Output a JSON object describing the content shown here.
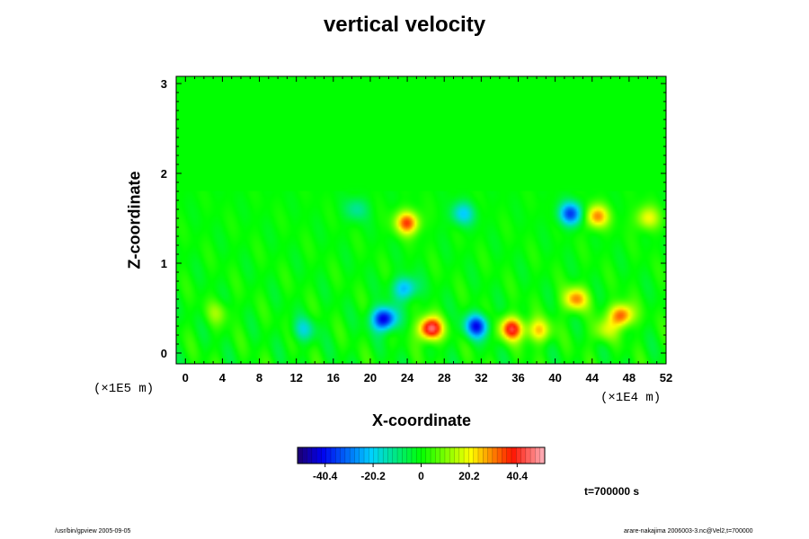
{
  "chart_data": {
    "type": "heatmap",
    "title": "vertical velocity",
    "xlabel": "X-coordinate",
    "ylabel": "Z-coordinate",
    "x_scale_label": "(×1E4 m)",
    "y_scale_label": "(×1E5 m)",
    "xlim": [
      -1,
      52
    ],
    "ylim": [
      -0.12,
      3.08
    ],
    "x_ticks": [
      0,
      4,
      8,
      12,
      16,
      20,
      24,
      28,
      32,
      36,
      40,
      44,
      48,
      52
    ],
    "y_ticks": [
      0,
      1,
      2,
      3
    ],
    "colorbar": {
      "range": [
        -52,
        52
      ],
      "tick_values": [
        -40.4,
        -20.2,
        0,
        20.2,
        40.4
      ],
      "tick_labels": [
        "-40.4",
        "-20.2",
        "0",
        "20.2",
        "40.4"
      ]
    },
    "features": [
      {
        "x": 21.5,
        "z": 0.38,
        "value": -46
      },
      {
        "x": 26.5,
        "z": 0.27,
        "value": 48
      },
      {
        "x": 31.5,
        "z": 0.3,
        "value": -38
      },
      {
        "x": 35.3,
        "z": 0.27,
        "value": 40
      },
      {
        "x": 38.2,
        "z": 0.25,
        "value": 24
      },
      {
        "x": 42.2,
        "z": 0.6,
        "value": 30
      },
      {
        "x": 47.2,
        "z": 0.42,
        "value": 36
      },
      {
        "x": 45.3,
        "z": 0.25,
        "value": 15
      },
      {
        "x": 12.8,
        "z": 0.26,
        "value": -15
      },
      {
        "x": 41.7,
        "z": 1.55,
        "value": -35
      },
      {
        "x": 44.5,
        "z": 1.52,
        "value": 30
      },
      {
        "x": 24.0,
        "z": 1.45,
        "value": 35
      },
      {
        "x": 30.0,
        "z": 1.55,
        "value": -20
      },
      {
        "x": 23.8,
        "z": 0.72,
        "value": -25
      },
      {
        "x": 3.5,
        "z": 0.45,
        "value": 10
      },
      {
        "x": 50.0,
        "z": 1.5,
        "value": 20
      },
      {
        "x": 18.5,
        "z": 1.6,
        "value": -12
      }
    ]
  },
  "time_label": "t=700000 s",
  "footer_left": "/usr/bin/gpview 2005-09-05",
  "footer_right": "arare-nakajima  2006003-3.nc@Vel2,t=700000"
}
